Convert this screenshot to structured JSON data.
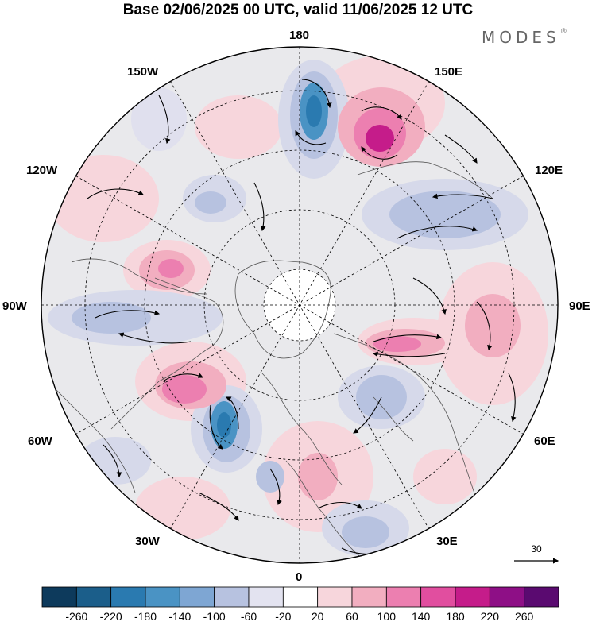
{
  "header": {
    "title": "Base 02/06/2025 00 UTC, valid 11/06/2025 12 UTC",
    "brand": "MODES",
    "brand_mark": "®"
  },
  "map": {
    "projection": "polar-stereographic-north",
    "longitude_labels": {
      "lon_180": "180",
      "lon_150w": "150W",
      "lon_150e": "150E",
      "lon_120w": "120W",
      "lon_120e": "120E",
      "lon_90w": "90W",
      "lon_90e": "90E",
      "lon_60w": "60W",
      "lon_60e": "60E",
      "lon_30w": "30W",
      "lon_30e": "30E",
      "lon_0": "0"
    },
    "reference_vector": {
      "value": "30"
    },
    "anomaly_centers": [
      {
        "sign": "negative",
        "level": -180,
        "region": "near 180"
      },
      {
        "sign": "positive",
        "level": 180,
        "region": "near 160E"
      },
      {
        "sign": "negative",
        "level": -180,
        "region": "near 45W"
      },
      {
        "sign": "positive",
        "level": 140,
        "region": "near 70W"
      },
      {
        "sign": "positive",
        "level": 140,
        "region": "near 90E"
      },
      {
        "sign": "negative",
        "level": -100,
        "region": "near 120E"
      },
      {
        "sign": "negative",
        "level": -100,
        "region": "near 60E"
      },
      {
        "sign": "positive",
        "level": 100,
        "region": "near 5E"
      }
    ]
  },
  "colorbar": {
    "labels": [
      "-260",
      "-220",
      "-180",
      "-140",
      "-100",
      "-60",
      "-20",
      "20",
      "60",
      "100",
      "140",
      "180",
      "220",
      "260"
    ],
    "colors": [
      "#0d3a5c",
      "#1b5e8a",
      "#2a7ab0",
      "#4a93c4",
      "#7ea6d3",
      "#b7c2e0",
      "#e3e3f0",
      "#ffffff",
      "#f7d6dc",
      "#f2aec0",
      "#ec7fb0",
      "#e14e9f",
      "#c51c8a",
      "#8e0f86",
      "#5a0a70"
    ]
  }
}
